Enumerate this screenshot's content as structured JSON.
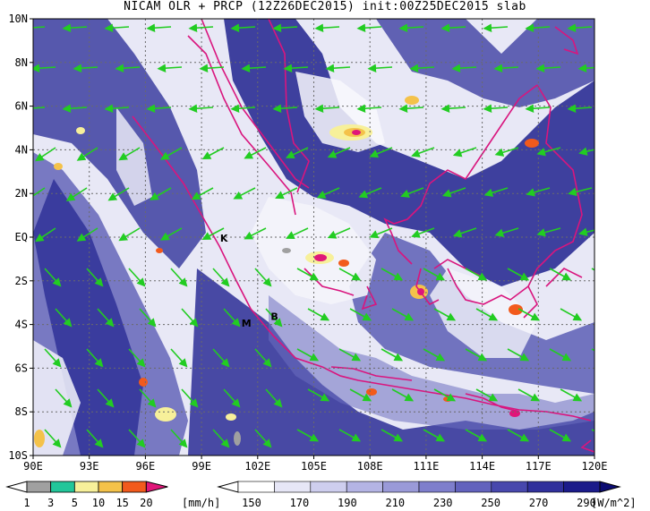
{
  "title": "NICAM OLR + PRCP (12Z26DEC2015) init:00Z25DEC2015 slab",
  "map": {
    "lat_labels": [
      "10N",
      "8N",
      "6N",
      "4N",
      "2N",
      "EQ",
      "2S",
      "4S",
      "6S",
      "8S",
      "10S"
    ],
    "lon_labels": [
      "90E",
      "93E",
      "96E",
      "99E",
      "102E",
      "105E",
      "108E",
      "111E",
      "114E",
      "117E",
      "120E"
    ],
    "extent": {
      "lon": [
        90,
        120
      ],
      "lat": [
        -10,
        10
      ]
    },
    "grid": true,
    "markers": [
      {
        "label": "K",
        "lon": 100.2,
        "lat": -0.2
      },
      {
        "label": "M",
        "lon": 101.4,
        "lat": -4.1
      },
      {
        "label": "B",
        "lon": 102.9,
        "lat": -3.8
      }
    ],
    "colors": {
      "cloud_dark": "#2b2d95",
      "cloud_mid": "#6c6ebf",
      "cloud_light": "#c6c7ea",
      "coast": "#d9157e",
      "wind": "#22cc22",
      "grid": "#6a6a6a"
    }
  },
  "precip_scale": {
    "ticks": [
      "1",
      "3",
      "5",
      "10",
      "15",
      "20"
    ],
    "unit": "[mm/h]",
    "colors": [
      "#a0a0a0",
      "#22c69a",
      "#f7f09a",
      "#f4c24a",
      "#f25a1c",
      "#e01679"
    ]
  },
  "olr_scale": {
    "ticks": [
      "150",
      "170",
      "190",
      "210",
      "230",
      "250",
      "270",
      "290"
    ],
    "unit": "[W/m^2]",
    "colors": [
      "#ffffff",
      "#e6e6f6",
      "#ceceee",
      "#b4b4e4",
      "#9a9ad8",
      "#7e7ecc",
      "#6262bd",
      "#4848ad",
      "#30309c",
      "#1b1b8a",
      "#0c0c72"
    ]
  }
}
